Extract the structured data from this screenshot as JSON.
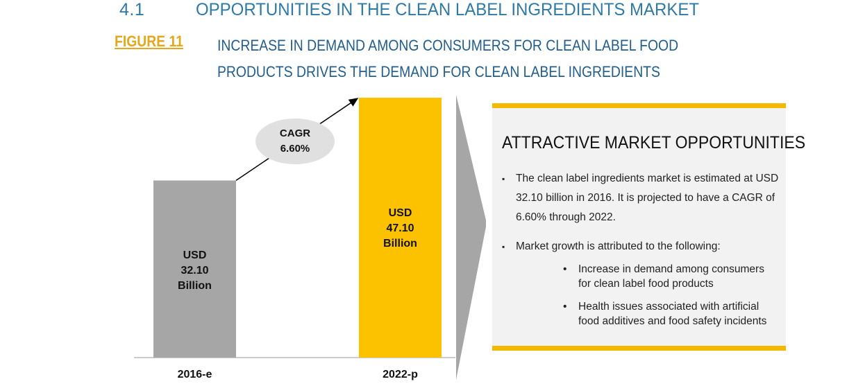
{
  "header": {
    "section_number": "4.1",
    "section_title": "OPPORTUNITIES IN THE CLEAN LABEL INGREDIENTS MARKET",
    "figure_label": "FIGURE 11",
    "figure_caption_line1": "INCREASE IN DEMAND AMONG CONSUMERS FOR CLEAN LABEL FOOD",
    "figure_caption_line2": "PRODUCTS DRIVES THE DEMAND FOR CLEAN LABEL INGREDIENTS"
  },
  "chart_data": {
    "type": "bar",
    "categories": [
      "2016-e",
      "2022-p"
    ],
    "values": [
      32.1,
      47.1
    ],
    "value_labels": [
      [
        "USD",
        "32.10",
        "Billion"
      ],
      [
        "USD",
        "47.10",
        "Billion"
      ]
    ],
    "unit": "USD Billion",
    "bar_colors": [
      "#a6a6a6",
      "#fcc200"
    ],
    "ylim": [
      0,
      47.1
    ],
    "grid": false,
    "annotation": {
      "line1": "CAGR",
      "line2": "6.60%"
    }
  },
  "panel": {
    "title": "ATTRACTIVE MARKET OPPORTUNITIES",
    "bullet1": "The clean label ingredients market is estimated at USD 32.10 billion in 2016. It is projected to have a CAGR of 6.60% through 2022.",
    "bullet2": "Market growth is attributed to the following:",
    "sub_bullets": [
      "Increase in demand among consumers for clean label food products",
      "Health issues associated with artificial food additives and food safety incidents"
    ]
  },
  "colors": {
    "header_blue": "#2e7aa6",
    "caption_blue": "#215e8c",
    "figure_gold": "#e3a81c",
    "accent_yellow": "#f5b800",
    "gray_bar": "#a6a6a6",
    "panel_bg": "#f2f2f2"
  }
}
